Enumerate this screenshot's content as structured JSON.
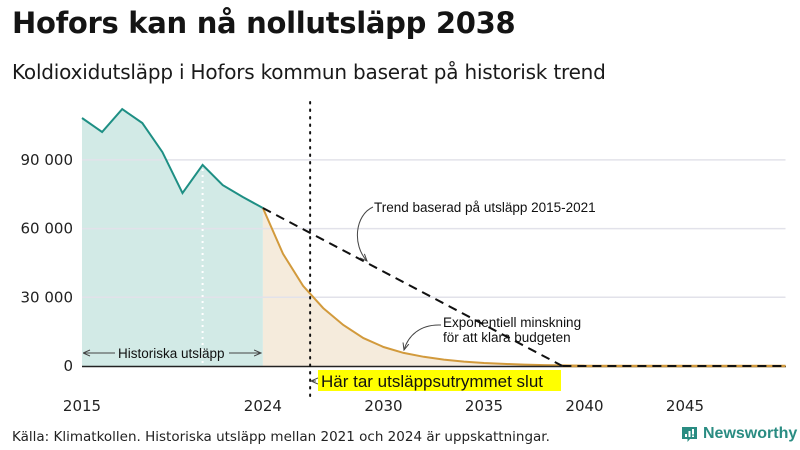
{
  "header": {
    "title": "Hofors kan nå nollutsläpp 2038",
    "subtitle": "Koldioxidutsläpp i Hofors kommun baserat på historisk trend"
  },
  "footer": {
    "source": "Källa: Klimatkollen. Historiska utsläpp mellan 2021 och 2024 är uppskattningar.",
    "brand": "Newsworthy"
  },
  "colors": {
    "historical_line": "#1e8f84",
    "historical_fill": "#d2eae6",
    "projection_line": "#d29a3c",
    "projection_fill": "#f5ebdc",
    "trend_line": "#111111",
    "gridline": "#e2e2ea",
    "highlight": "#ffff00",
    "brand": "#2a8c82"
  },
  "annotations": {
    "historical_label": "Historiska utsläpp",
    "trend_label": "Trend baserad på utsläpp 2015-2021",
    "exp_label_line1": "Exponentiell minskning",
    "exp_label_line2": "för att klara budgeten",
    "cutoff_label": "Här tar utsläppsutrymmet slut",
    "cutoff_year": 2026.35
  },
  "chart_data": {
    "type": "area",
    "title": "Hofors kan nå nollutsläpp 2038",
    "subtitle": "Koldioxidutsläpp i Hofors kommun baserat på historisk trend",
    "xlabel": "",
    "ylabel": "",
    "xlim": [
      2015,
      2050
    ],
    "ylim": [
      0,
      115000
    ],
    "x_ticks": [
      2015,
      2024,
      2030,
      2035,
      2040,
      2045
    ],
    "x_tick_labels": [
      "2015",
      "2024",
      "2030",
      "2035",
      "2040",
      "2045"
    ],
    "y_ticks": [
      0,
      30000,
      60000,
      90000
    ],
    "y_tick_labels": [
      "0",
      "30 000",
      "60 000",
      "90 000"
    ],
    "grid": true,
    "legend": "none (inline annotations)",
    "series": [
      {
        "name": "Historiska utsläpp",
        "style": "solid teal line with teal area fill",
        "x": [
          2015,
          2016,
          2017,
          2018,
          2019,
          2020,
          2021,
          2022,
          2023,
          2024
        ],
        "values": [
          108300,
          102200,
          112200,
          106100,
          93400,
          75500,
          87800,
          79000,
          73800,
          69000
        ]
      },
      {
        "name": "Exponentiell minskning för att klara budgeten",
        "style": "solid orange line with beige area fill",
        "x": [
          2024,
          2025,
          2026,
          2027,
          2028,
          2029,
          2030,
          2031,
          2032,
          2033,
          2034,
          2035,
          2036,
          2037,
          2038,
          2039,
          2040,
          2045,
          2050
        ],
        "values": [
          69000,
          49000,
          35000,
          25300,
          17900,
          12200,
          8300,
          5700,
          4000,
          2800,
          1900,
          1300,
          900,
          600,
          400,
          250,
          150,
          0,
          0
        ]
      },
      {
        "name": "Trend baserad på utsläpp 2015-2021",
        "style": "black dashed line",
        "x": [
          2024,
          2038.9,
          2050
        ],
        "values": [
          69000,
          0,
          0
        ]
      }
    ],
    "annotations": [
      {
        "text": "Historiska utsläpp",
        "x_range": [
          2015,
          2024
        ],
        "y": 5500
      },
      {
        "text": "Trend baserad på utsläpp 2015-2021",
        "arrow_to": [
          2029.8,
          46000
        ]
      },
      {
        "text": "Exponentiell minskning för att klara budgeten",
        "arrow_to": [
          2031.2,
          5500
        ]
      },
      {
        "text": "Här tar utsläppsutrymmet slut",
        "vertical_dotted_line_at": 2026.35
      }
    ]
  }
}
